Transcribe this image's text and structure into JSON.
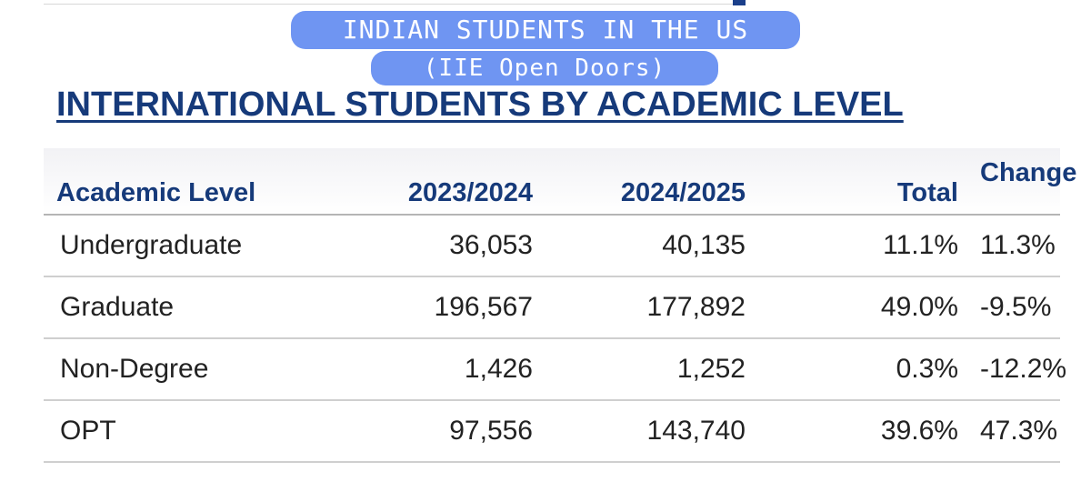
{
  "banner": {
    "line1": "INDIAN STUDENTS IN THE US",
    "line2": "(IIE Open Doors)"
  },
  "heading": "INTERNATIONAL STUDENTS BY ACADEMIC LEVEL",
  "table": {
    "headers": {
      "level": "Academic Level",
      "year1": "2023/2024",
      "year2": "2024/2025",
      "total": "Total",
      "change": "Change"
    },
    "rows": [
      {
        "level": "Undergraduate",
        "year1": "36,053",
        "year2": "40,135",
        "total": "11.1%",
        "change": "11.3%"
      },
      {
        "level": "Graduate",
        "year1": "196,567",
        "year2": "177,892",
        "total": "49.0%",
        "change": "-9.5%"
      },
      {
        "level": "Non-Degree",
        "year1": "1,426",
        "year2": "1,252",
        "total": "0.3%",
        "change": "-12.2%"
      },
      {
        "level": "OPT",
        "year1": "97,556",
        "year2": "143,740",
        "total": "39.6%",
        "change": "47.3%"
      }
    ]
  },
  "colors": {
    "pill": "#6f95f2",
    "heading": "#163a7a"
  }
}
